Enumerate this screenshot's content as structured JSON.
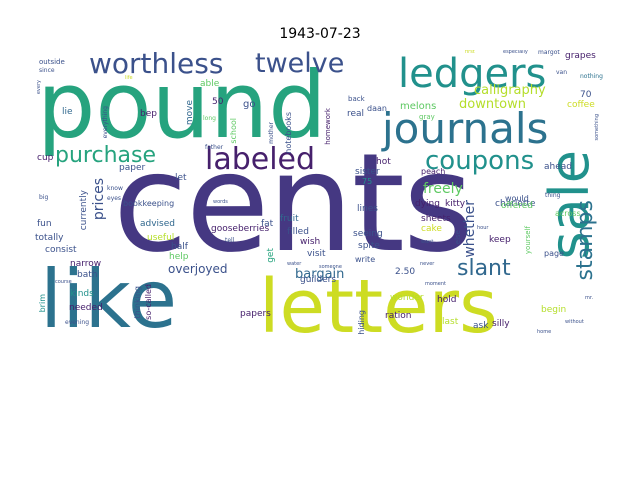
{
  "title": "1943-07-23",
  "palette": {
    "dark_purple": "#440154",
    "indigo": "#3b528b",
    "blue": "#31688e",
    "teal": "#21918c",
    "sea_green": "#26a37e",
    "green": "#5ec962",
    "lime": "#b5de2b",
    "yellow_green": "#cddc23"
  },
  "words": [
    {
      "text": "cents",
      "color": "#453882",
      "weight": 1.0
    },
    {
      "text": "pound",
      "color": "#26a37e",
      "weight": 0.93
    },
    {
      "text": "letters",
      "color": "#cddc23",
      "weight": 0.75
    },
    {
      "text": "like",
      "color": "#2c728e",
      "weight": 0.74
    },
    {
      "text": "sale",
      "color": "#21918c",
      "weight": 0.5
    },
    {
      "text": "ledgers",
      "color": "#21918c",
      "weight": 0.46
    },
    {
      "text": "journals",
      "color": "#2c728e",
      "weight": 0.45
    },
    {
      "text": "labeled",
      "color": "#46206c",
      "weight": 0.33
    },
    {
      "text": "worthless",
      "color": "#3b518b",
      "weight": 0.29
    },
    {
      "text": "twelve",
      "color": "#3b518b",
      "weight": 0.27
    },
    {
      "text": "purchase",
      "color": "#26a37e",
      "weight": 0.26
    },
    {
      "text": "coupons",
      "color": "#21918c",
      "weight": 0.25
    },
    {
      "text": "stamps",
      "color": "#2c728e",
      "weight": 0.2
    },
    {
      "text": "slant",
      "color": "#31688e",
      "weight": 0.2
    },
    {
      "text": "calligraphy",
      "color": "#b5de2b",
      "weight": 0.14
    },
    {
      "text": "downtown",
      "color": "#b5de2b",
      "weight": 0.14
    },
    {
      "text": "freely",
      "color": "#5ec962",
      "weight": 0.13
    },
    {
      "text": "prices",
      "color": "#3b518b",
      "weight": 0.12
    },
    {
      "text": "whether",
      "color": "#3b518b",
      "weight": 0.12
    },
    {
      "text": "overjoyed",
      "color": "#3b518b",
      "weight": 0.11
    },
    {
      "text": "bargain",
      "color": "#31688e",
      "weight": 0.11
    },
    {
      "text": "grapes",
      "color": "#46206c",
      "weight": 0.05
    },
    {
      "text": "especially",
      "color": "#3b518b",
      "weight": 0.03
    },
    {
      "text": "margot",
      "color": "#3b518b",
      "weight": 0.03
    },
    {
      "text": "first",
      "color": "#cddc23",
      "weight": 0.02
    },
    {
      "text": "outside",
      "color": "#3b518b",
      "weight": 0.04
    },
    {
      "text": "since",
      "color": "#3b518b",
      "weight": 0.03
    },
    {
      "text": "nothing",
      "color": "#2c728e",
      "weight": 0.03
    },
    {
      "text": "van",
      "color": "#3b518b",
      "weight": 0.03
    },
    {
      "text": "70",
      "color": "#3b518b",
      "weight": 0.04
    },
    {
      "text": "coffee",
      "color": "#cddc23",
      "weight": 0.04
    },
    {
      "text": "life",
      "color": "#cddc23",
      "weight": 0.02
    },
    {
      "text": "able",
      "color": "#5ec962",
      "weight": 0.04
    },
    {
      "text": "go",
      "color": "#3b518b",
      "weight": 0.05
    },
    {
      "text": "lie",
      "color": "#31688e",
      "weight": 0.05
    },
    {
      "text": "everything",
      "color": "#3b518b",
      "weight": 0.03
    },
    {
      "text": "bep",
      "color": "#46206c",
      "weight": 0.05
    },
    {
      "text": "move",
      "color": "#31688e",
      "weight": 0.05
    },
    {
      "text": "school",
      "color": "#5ec962",
      "weight": 0.04
    },
    {
      "text": "notebooks",
      "color": "#3b518b",
      "weight": 0.04
    },
    {
      "text": "homework",
      "color": "#46206c",
      "weight": 0.03
    },
    {
      "text": "melons",
      "color": "#5ec962",
      "weight": 0.05
    },
    {
      "text": "daan",
      "color": "#3b518b",
      "weight": 0.04
    },
    {
      "text": "gray",
      "color": "#5ec962",
      "weight": 0.03
    },
    {
      "text": "back",
      "color": "#3b518b",
      "weight": 0.03
    },
    {
      "text": "real",
      "color": "#3b518b",
      "weight": 0.05
    },
    {
      "text": "across",
      "color": "#5ec962",
      "weight": 0.04
    },
    {
      "text": "50",
      "color": "#46206c",
      "weight": 0.04
    },
    {
      "text": "long",
      "color": "#5ec962",
      "weight": 0.02
    },
    {
      "text": "father",
      "color": "#3b518b",
      "weight": 0.02
    },
    {
      "text": "mother",
      "color": "#3b518b",
      "weight": 0.02
    },
    {
      "text": "hot",
      "color": "#46206c",
      "weight": 0.05
    },
    {
      "text": "charlotte",
      "color": "#3b518b",
      "weight": 0.04
    },
    {
      "text": "offered",
      "color": "#5ec962",
      "weight": 0.05
    },
    {
      "text": "ahead",
      "color": "#3b518b",
      "weight": 0.04
    },
    {
      "text": "kitty",
      "color": "#46206c",
      "weight": 0.04
    },
    {
      "text": "paper",
      "color": "#3b518b",
      "weight": 0.04
    },
    {
      "text": "cup",
      "color": "#46206c",
      "weight": 0.05
    },
    {
      "text": "75",
      "color": "#21918c",
      "weight": 0.04
    },
    {
      "text": "sister",
      "color": "#3b518b",
      "weight": 0.05
    },
    {
      "text": "peach",
      "color": "#46206c",
      "weight": 0.04
    },
    {
      "text": "big",
      "color": "#3b518b",
      "weight": 0.02
    },
    {
      "text": "let",
      "color": "#3b518b",
      "weight": 0.04
    },
    {
      "text": "bookkeeping",
      "color": "#3b518b",
      "weight": 0.04
    },
    {
      "text": "words",
      "color": "#3b518b",
      "weight": 0.02
    },
    {
      "text": "thing",
      "color": "#3b518b",
      "weight": 0.02
    },
    {
      "text": "would",
      "color": "#3b518b",
      "weight": 0.04
    },
    {
      "text": "currently",
      "color": "#3b518b",
      "weight": 0.04
    },
    {
      "text": "advised",
      "color": "#31688e",
      "weight": 0.04
    },
    {
      "text": "fruit",
      "color": "#31688e",
      "weight": 0.04
    },
    {
      "text": "lines",
      "color": "#3b518b",
      "weight": 0.04
    },
    {
      "text": "dying",
      "color": "#46206c",
      "weight": 0.04
    },
    {
      "text": "fun",
      "color": "#3b518b",
      "weight": 0.04
    },
    {
      "text": "filled",
      "color": "#3b518b",
      "weight": 0.04
    },
    {
      "text": "sheets",
      "color": "#46206c",
      "weight": 0.04
    },
    {
      "text": "totally",
      "color": "#3b518b",
      "weight": 0.04
    },
    {
      "text": "useful",
      "color": "#b5de2b",
      "weight": 0.05
    },
    {
      "text": "gooseberries",
      "color": "#46206c",
      "weight": 0.04
    },
    {
      "text": "seeing",
      "color": "#3b518b",
      "weight": 0.04
    },
    {
      "text": "cake",
      "color": "#cddc23",
      "weight": 0.04
    },
    {
      "text": "keep",
      "color": "#46206c",
      "weight": 0.04
    },
    {
      "text": "consist",
      "color": "#3b518b",
      "weight": 0.04
    },
    {
      "text": "half",
      "color": "#3b518b",
      "weight": 0.04
    },
    {
      "text": "tell",
      "color": "#3b518b",
      "weight": 0.02
    },
    {
      "text": "wish",
      "color": "#46206c",
      "weight": 0.04
    },
    {
      "text": "spite",
      "color": "#3b518b",
      "weight": 0.04
    },
    {
      "text": "narrow",
      "color": "#46206c",
      "weight": 0.04
    },
    {
      "text": "help",
      "color": "#5ec962",
      "weight": 0.04
    },
    {
      "text": "fat",
      "color": "#3b518b",
      "weight": 0.04
    },
    {
      "text": "visit",
      "color": "#3b518b",
      "weight": 0.04
    },
    {
      "text": "write",
      "color": "#3b518b",
      "weight": 0.03
    },
    {
      "text": "page",
      "color": "#3b518b",
      "weight": 0.03
    },
    {
      "text": "bath",
      "color": "#3b518b",
      "weight": 0.04
    },
    {
      "text": "2.50",
      "color": "#3b518b",
      "weight": 0.04
    },
    {
      "text": "kinds",
      "color": "#21918c",
      "weight": 0.04
    },
    {
      "text": "get",
      "color": "#26a37e",
      "weight": 0.04
    },
    {
      "text": "needed",
      "color": "#46206c",
      "weight": 0.04
    },
    {
      "text": "guilders",
      "color": "#3b518b",
      "weight": 0.04
    },
    {
      "text": "wonder",
      "color": "#b5de2b",
      "weight": 0.04
    },
    {
      "text": "hold",
      "color": "#46206c",
      "weight": 0.04
    },
    {
      "text": "begin",
      "color": "#b5de2b",
      "weight": 0.04
    },
    {
      "text": "ration",
      "color": "#46206c",
      "weight": 0.04
    },
    {
      "text": "papers",
      "color": "#46206c",
      "weight": 0.04
    },
    {
      "text": "moment",
      "color": "#3b518b",
      "weight": 0.02
    },
    {
      "text": "thinking",
      "color": "#3b518b",
      "weight": 0.04
    },
    {
      "text": "last",
      "color": "#b5de2b",
      "weight": 0.04
    },
    {
      "text": "silly",
      "color": "#46206c",
      "weight": 0.04
    },
    {
      "text": "hiding",
      "color": "#3b518b",
      "weight": 0.04
    },
    {
      "text": "ask",
      "color": "#3b518b",
      "weight": 0.04
    },
    {
      "text": "so-called",
      "color": "#46206c",
      "weight": 0.04
    },
    {
      "text": "brim",
      "color": "#21918c",
      "weight": 0.04
    },
    {
      "text": "evening",
      "color": "#3b518b",
      "weight": 0.02
    },
    {
      "text": "course",
      "color": "#3b518b",
      "weight": 0.02
    },
    {
      "text": "never",
      "color": "#3b518b",
      "weight": 0.02
    },
    {
      "text": "want",
      "color": "#3b518b",
      "weight": 0.02
    },
    {
      "text": "without",
      "color": "#3b518b",
      "weight": 0.02
    },
    {
      "text": "home",
      "color": "#3b518b",
      "weight": 0.02
    },
    {
      "text": "mr.",
      "color": "#3b518b",
      "weight": 0.02
    },
    {
      "text": "someone",
      "color": "#3b518b",
      "weight": 0.02
    },
    {
      "text": "eyes",
      "color": "#3b518b",
      "weight": 0.02
    },
    {
      "text": "know",
      "color": "#3b518b",
      "weight": 0.02
    },
    {
      "text": "something",
      "color": "#3b518b",
      "weight": 0.02
    },
    {
      "text": "yourself",
      "color": "#5ec962",
      "weight": 0.03
    },
    {
      "text": "every",
      "color": "#3b518b",
      "weight": 0.02
    },
    {
      "text": "else",
      "color": "#3b518b",
      "weight": 0.03
    },
    {
      "text": "hour",
      "color": "#3b518b",
      "weight": 0.02
    },
    {
      "text": "water",
      "color": "#3b518b",
      "weight": 0.02
    }
  ]
}
